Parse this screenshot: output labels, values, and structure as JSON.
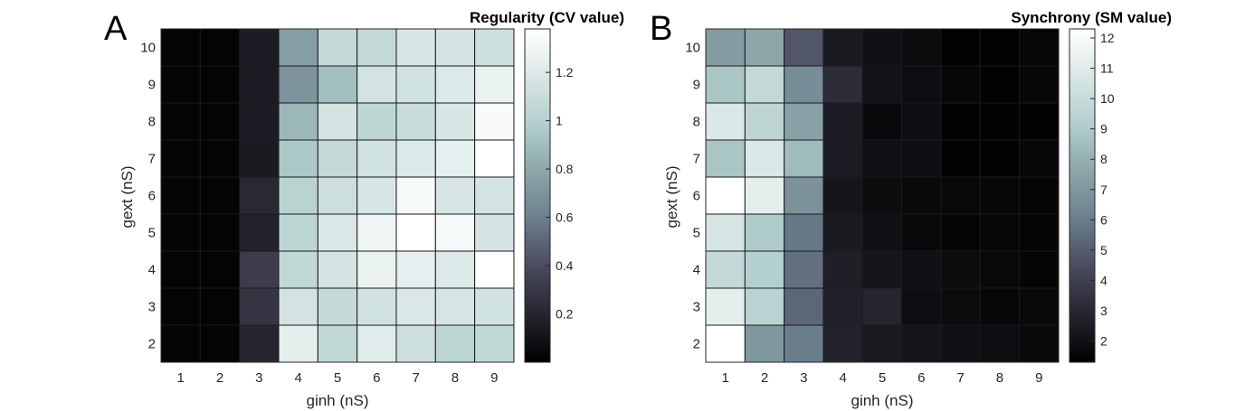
{
  "chart_data": [
    {
      "type": "heatmap",
      "panel_label": "A",
      "colorbar_title": "Regularity (CV value)",
      "xlabel": "ginh (nS)",
      "ylabel": "gext (nS)",
      "x": [
        1,
        2,
        3,
        4,
        5,
        6,
        7,
        8,
        9
      ],
      "y": [
        10,
        9,
        8,
        7,
        6,
        5,
        4,
        3,
        2
      ],
      "clim": [
        0,
        1.38
      ],
      "colorbar_ticks": [
        0.2,
        0.4,
        0.6,
        0.8,
        1,
        1.2
      ],
      "colormap": [
        "#000000",
        "#25252f",
        "#4a4a5e",
        "#6a7e8c",
        "#8ca6a9",
        "#b2cfcd",
        "#d8e7e6",
        "#ffffff"
      ],
      "values": [
        [
          0.02,
          0.02,
          0.15,
          0.75,
          1.07,
          1.08,
          1.18,
          1.16,
          1.13
        ],
        [
          0.02,
          0.02,
          0.15,
          0.7,
          0.91,
          1.15,
          1.14,
          1.2,
          1.27
        ],
        [
          0.02,
          0.02,
          0.15,
          0.87,
          1.15,
          1.05,
          1.1,
          1.18,
          1.35
        ],
        [
          0.02,
          0.02,
          0.14,
          0.95,
          1.07,
          1.14,
          1.2,
          1.25,
          1.38
        ],
        [
          0.02,
          0.02,
          0.22,
          1.02,
          1.12,
          1.18,
          1.34,
          1.17,
          1.15
        ],
        [
          0.02,
          0.02,
          0.18,
          1.04,
          1.19,
          1.3,
          1.38,
          1.33,
          1.16
        ],
        [
          0.02,
          0.02,
          0.32,
          1.06,
          1.16,
          1.27,
          1.25,
          1.2,
          1.38
        ],
        [
          0.02,
          0.02,
          0.28,
          1.15,
          1.08,
          1.14,
          1.19,
          1.17,
          1.14
        ],
        [
          0.02,
          0.02,
          0.2,
          1.24,
          1.06,
          1.22,
          1.12,
          1.04,
          1.06
        ]
      ]
    },
    {
      "type": "heatmap",
      "panel_label": "B",
      "colorbar_title": "Synchrony (SM value)",
      "xlabel": "ginh (nS)",
      "ylabel": "gext (nS)",
      "x": [
        1,
        2,
        3,
        4,
        5,
        6,
        7,
        8,
        9
      ],
      "y": [
        10,
        9,
        8,
        7,
        6,
        5,
        4,
        3,
        2
      ],
      "clim": [
        1.3,
        12.3
      ],
      "colorbar_ticks": [
        2,
        3,
        4,
        5,
        6,
        7,
        8,
        9,
        10,
        11,
        12
      ],
      "colormap": [
        "#000000",
        "#25252f",
        "#4a4a5e",
        "#6a7e8c",
        "#8ca6a9",
        "#b2cfcd",
        "#d8e7e6",
        "#ffffff"
      ],
      "values": [
        [
          7.2,
          7.6,
          4.8,
          2.4,
          2.0,
          1.8,
          1.4,
          1.4,
          1.6
        ],
        [
          8.8,
          9.8,
          6.6,
          3.2,
          2.1,
          1.9,
          1.6,
          1.4,
          1.6
        ],
        [
          10.8,
          9.6,
          7.4,
          2.5,
          1.7,
          1.9,
          1.4,
          1.4,
          1.4
        ],
        [
          8.8,
          10.8,
          8.4,
          2.5,
          2.0,
          1.9,
          1.4,
          1.4,
          1.6
        ],
        [
          12.3,
          11.2,
          6.8,
          2.2,
          1.8,
          1.7,
          1.7,
          1.6,
          1.5
        ],
        [
          10.6,
          9.0,
          5.8,
          2.4,
          2.0,
          1.7,
          1.5,
          1.6,
          1.5
        ],
        [
          9.8,
          9.2,
          5.6,
          2.6,
          2.2,
          2.0,
          1.8,
          1.7,
          1.5
        ],
        [
          11.2,
          9.4,
          5.3,
          2.7,
          2.9,
          1.9,
          1.8,
          1.6,
          1.7
        ],
        [
          12.3,
          7.0,
          6.0,
          2.8,
          2.4,
          2.2,
          2.0,
          1.9,
          1.7
        ]
      ]
    }
  ]
}
